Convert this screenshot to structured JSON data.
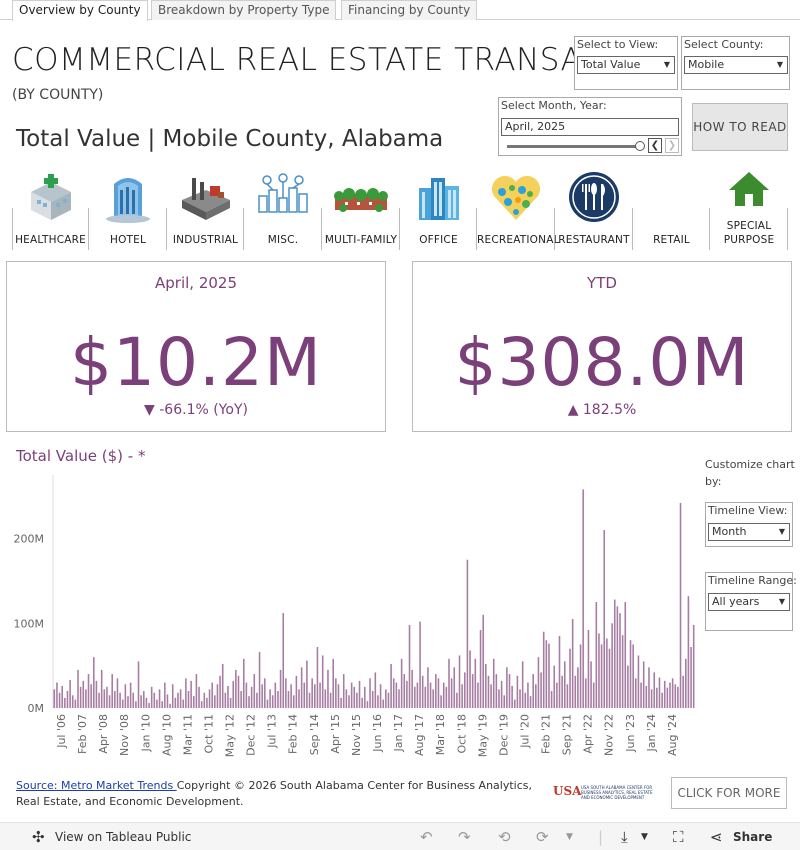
{
  "tabs": [
    "Overview by County",
    "Breakdown by Property Type",
    "Financing by County"
  ],
  "title": "COMMERCIAL REAL ESTATE TRANSACTIONS",
  "subtitle": "(BY COUNTY)",
  "view_title": "Total Value  |  Mobile County, Alabama",
  "filters": {
    "view": {
      "label": "Select to View:",
      "value": "Total Value"
    },
    "county": {
      "label": "Select County:",
      "value": "Mobile"
    },
    "month": {
      "label": "Select Month, Year:",
      "value": "April, 2025"
    }
  },
  "how_to_read": "HOW TO READ",
  "categories": [
    {
      "label": "HEALTHCARE",
      "icon": "healthcare-icon"
    },
    {
      "label": "HOTEL",
      "icon": "hotel-icon"
    },
    {
      "label": "INDUSTRIAL",
      "icon": "industrial-icon"
    },
    {
      "label": "MISC.",
      "icon": "misc-icon"
    },
    {
      "label": "MULTI-FAMILY",
      "icon": "multi-family-icon"
    },
    {
      "label": "OFFICE",
      "icon": "office-icon"
    },
    {
      "label": "RECREATIONAL",
      "icon": "recreational-icon"
    },
    {
      "label": "RESTAURANT",
      "icon": "restaurant-icon"
    },
    {
      "label": "RETAIL",
      "icon": ""
    },
    {
      "label": "SPECIAL PURPOSE",
      "icon": "special-purpose-icon"
    }
  ],
  "kpi": {
    "month": {
      "header": "April, 2025",
      "value": "$10.2M",
      "change": "▼ -66.1% (YoY)"
    },
    "ytd": {
      "header": "YTD",
      "value": "$308.0M",
      "change": "▲ 182.5%"
    }
  },
  "chart_title": "Total Value ($) - *",
  "customize": {
    "label": "Customize chart by:",
    "timeline_view": {
      "label": "Timeline View:",
      "value": "Month"
    },
    "timeline_range": {
      "label": "Timeline Range:",
      "value": "All years"
    }
  },
  "footer": {
    "source_link": "Source: Metro Market Trends ",
    "copyright": "Copyright © 2026 South Alabama Center for Business Analytics, Real Estate, and Economic Development.",
    "logo_text": "USA SOUTH ALABAMA CENTER FOR BUSINESS ANALYTICS, REAL ESTATE AND ECONOMIC DEVELOPMENT",
    "click_more": "CLICK FOR MORE ..."
  },
  "bottom_bar": {
    "view_label": "View on Tableau Public",
    "share_label": "Share"
  },
  "colors": {
    "accent": "#7b3f7a",
    "bar": "#a77ca3"
  },
  "chart_data": {
    "type": "bar",
    "title": "Total Value ($) - *",
    "ylabel": "",
    "xlabel": "",
    "ylim": [
      0,
      275
    ],
    "y_unit": "M",
    "yticks": [
      0,
      100,
      200
    ],
    "ytick_labels": [
      "0M",
      "100M",
      "200M"
    ],
    "xtick_labels": [
      "Jul '06",
      "Feb '07",
      "Apr '08",
      "Nov '08",
      "Jan '10",
      "Aug '10",
      "Mar '11",
      "Oct '11",
      "May '12",
      "Dec '12",
      "Jul '13",
      "Feb '14",
      "Sep '14",
      "Apr '15",
      "Nov '15",
      "Jun '16",
      "Jan '17",
      "Aug '17",
      "Mar '18",
      "Oct '18",
      "May '19",
      "Dec '19",
      "Jul '20",
      "Feb '21",
      "Sep '21",
      "Apr '22",
      "Nov '22",
      "Jun '23",
      "Jan '24",
      "Aug '24"
    ],
    "values": [
      22,
      30,
      18,
      26,
      12,
      20,
      33,
      15,
      10,
      45,
      25,
      32,
      22,
      40,
      28,
      60,
      32,
      18,
      45,
      22,
      25,
      15,
      40,
      20,
      35,
      18,
      10,
      28,
      14,
      30,
      18,
      8,
      55,
      15,
      20,
      12,
      6,
      25,
      18,
      10,
      22,
      8,
      30,
      16,
      5,
      28,
      12,
      18,
      22,
      10,
      35,
      20,
      32,
      14,
      40,
      25,
      8,
      18,
      12,
      22,
      30,
      15,
      28,
      38,
      52,
      18,
      26,
      12,
      32,
      45,
      38,
      20,
      58,
      30,
      14,
      25,
      40,
      18,
      66,
      28,
      35,
      10,
      22,
      15,
      30,
      20,
      45,
      112,
      35,
      20,
      28,
      15,
      38,
      22,
      48,
      30,
      56,
      18,
      35,
      28,
      72,
      30,
      62,
      22,
      45,
      18,
      58,
      35,
      28,
      12,
      40,
      22,
      15,
      30,
      25,
      18,
      32,
      12,
      25,
      8,
      35,
      20,
      42,
      15,
      28,
      10,
      22,
      18,
      52,
      35,
      30,
      22,
      58,
      40,
      32,
      98,
      45,
      25,
      30,
      102,
      38,
      25,
      48,
      30,
      22,
      40,
      35,
      15,
      30,
      25,
      58,
      35,
      48,
      18,
      62,
      28,
      42,
      175,
      68,
      40,
      58,
      30,
      92,
      110,
      52,
      38,
      28,
      58,
      40,
      22,
      32,
      15,
      48,
      40,
      26,
      10,
      38,
      22,
      55,
      18,
      30,
      14,
      40,
      28,
      60,
      42,
      90,
      80,
      76,
      20,
      50,
      30,
      85,
      38,
      55,
      28,
      70,
      105,
      38,
      48,
      75,
      258,
      35,
      92,
      55,
      30,
      125,
      88,
      75,
      210,
      82,
      70,
      100,
      128,
      120,
      112,
      86,
      125,
      50,
      80,
      75,
      35,
      62,
      30,
      55,
      26,
      48,
      22,
      42,
      24,
      36,
      18,
      32,
      24,
      30,
      35,
      28,
      25,
      242,
      38,
      58,
      132,
      72,
      98
    ]
  }
}
